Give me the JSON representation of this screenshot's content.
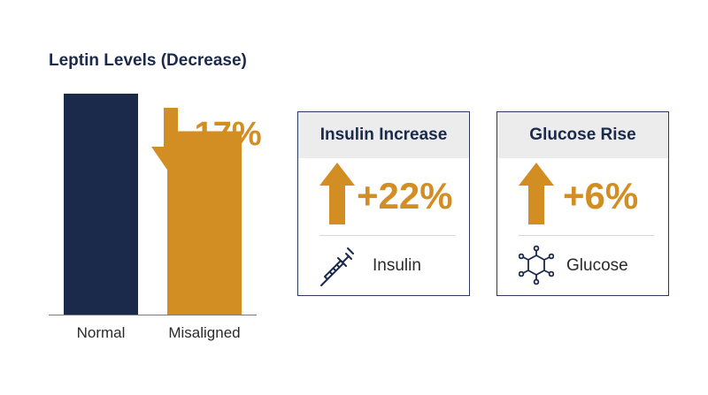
{
  "chart_data": {
    "type": "bar",
    "title": "Leptin Levels (Decrease)",
    "categories": [
      "Normal",
      "Misaligned"
    ],
    "values": [
      100,
      83
    ],
    "ylim": [
      0,
      100
    ],
    "colors": [
      "#1b2a4a",
      "#d28e22"
    ],
    "annotation": "-17%",
    "grid": false
  },
  "cards": [
    {
      "title": "Insulin Increase",
      "value": "+22%",
      "label": "Insulin",
      "icon": "syringe-icon",
      "arrow": "arrow-up-icon"
    },
    {
      "title": "Glucose Rise",
      "value": "+6%",
      "label": "Glucose",
      "icon": "molecule-icon",
      "arrow": "arrow-up-icon"
    }
  ],
  "colors": {
    "navy": "#1b2a4a",
    "gold": "#d28e22",
    "header_bg": "#ececec"
  }
}
